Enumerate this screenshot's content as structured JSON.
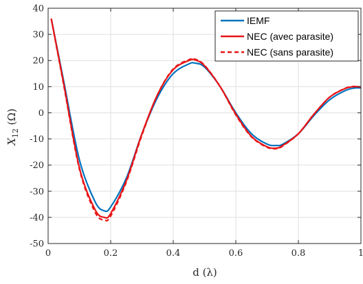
{
  "chart_data": {
    "type": "line",
    "xlabel": "d (λ)",
    "ylabel_main": "X",
    "ylabel_sub": "12",
    "ylabel_unit": " (Ω)",
    "xlim": [
      0,
      1
    ],
    "ylim": [
      -50,
      40
    ],
    "xticks": [
      0,
      0.2,
      0.4,
      0.6,
      0.8,
      1
    ],
    "xtick_labels": [
      "0",
      "0.2",
      "0.4",
      "0.6",
      "0.8",
      "1"
    ],
    "yticks": [
      40,
      30,
      20,
      10,
      0,
      -10,
      -20,
      -30,
      -40,
      -50
    ],
    "ytick_labels": [
      "40",
      "30",
      "20",
      "10",
      "0",
      "-10",
      "-20",
      "-30",
      "-40",
      "-50"
    ],
    "grid": true,
    "legend_position": "top-right",
    "series": [
      {
        "name": "IEMF",
        "color": "#0072BD",
        "style": "solid",
        "x": [
          0.01,
          0.05,
          0.1,
          0.15,
          0.18,
          0.2,
          0.25,
          0.3,
          0.35,
          0.4,
          0.45,
          0.47,
          0.5,
          0.55,
          0.6,
          0.65,
          0.7,
          0.73,
          0.75,
          0.8,
          0.85,
          0.9,
          0.95,
          0.98,
          1.0
        ],
        "y": [
          36,
          12,
          -18,
          -34,
          -37.5,
          -36,
          -25,
          -8,
          6,
          15,
          18.7,
          19,
          17.5,
          10,
          0,
          -8,
          -12,
          -12.5,
          -12,
          -8,
          -1,
          5,
          8.5,
          9.5,
          9.5
        ]
      },
      {
        "name": "NEC (avec parasite)",
        "color": "#E81416",
        "style": "solid",
        "x": [
          0.01,
          0.05,
          0.1,
          0.15,
          0.18,
          0.2,
          0.25,
          0.3,
          0.35,
          0.4,
          0.45,
          0.47,
          0.5,
          0.55,
          0.6,
          0.65,
          0.7,
          0.73,
          0.75,
          0.8,
          0.85,
          0.9,
          0.95,
          0.98,
          1.0
        ],
        "y": [
          36,
          11,
          -21,
          -37,
          -40,
          -38.5,
          -26,
          -8,
          7,
          16.5,
          20,
          20.2,
          18,
          10,
          -0.5,
          -9,
          -13,
          -13.5,
          -12.5,
          -8,
          -0.5,
          6,
          9.3,
          10,
          9.8
        ]
      },
      {
        "name": "NEC (sans parasite)",
        "color": "#E81416",
        "style": "dashed",
        "x": [
          0.01,
          0.05,
          0.1,
          0.15,
          0.18,
          0.2,
          0.25,
          0.3,
          0.35,
          0.4,
          0.45,
          0.47,
          0.5,
          0.55,
          0.6,
          0.65,
          0.7,
          0.73,
          0.75,
          0.8,
          0.85,
          0.9,
          0.95,
          0.98,
          1.0
        ],
        "y": [
          36,
          10.5,
          -21.5,
          -38,
          -41,
          -39.5,
          -26.5,
          -8.5,
          7,
          16.8,
          20.3,
          20.5,
          18.2,
          10,
          -0.8,
          -9.2,
          -13.2,
          -13.7,
          -12.7,
          -8,
          -0.5,
          6,
          9.4,
          10.1,
          9.8
        ]
      }
    ]
  }
}
